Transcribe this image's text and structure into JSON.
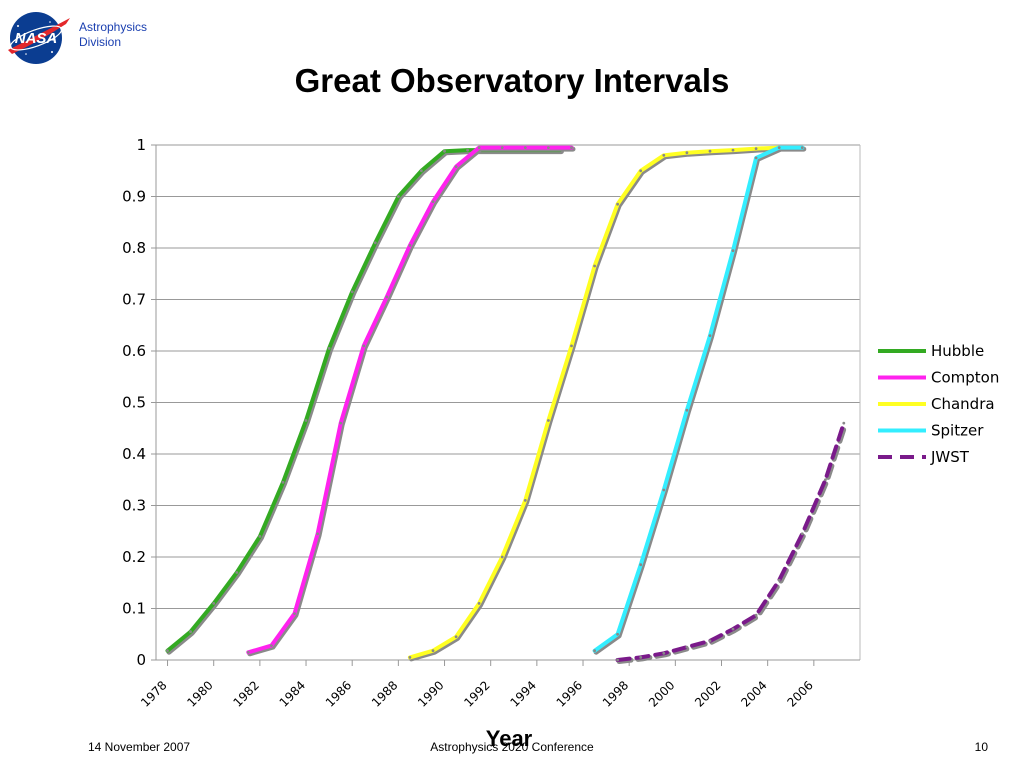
{
  "header": {
    "logo_text": "NASA",
    "division_line1": "Astrophysics",
    "division_line2": "Division"
  },
  "footer": {
    "date": "14 November 2007",
    "conference": "Astrophysics 2020 Conference",
    "page_number": "10"
  },
  "chart_data": {
    "type": "line",
    "title": "Great Observatory Intervals",
    "xlabel": "Year",
    "ylabel": "",
    "xlim": [
      1977.5,
      2008
    ],
    "ylim": [
      0,
      1
    ],
    "x_ticks": [
      "1978",
      "1980",
      "1982",
      "1984",
      "1986",
      "1988",
      "1990",
      "1992",
      "1994",
      "1996",
      "1998",
      "2000",
      "2002",
      "2004",
      "2006"
    ],
    "y_ticks": [
      "0",
      "0.1",
      "0.2",
      "0.3",
      "0.4",
      "0.5",
      "0.6",
      "0.7",
      "0.8",
      "0.9",
      "1"
    ],
    "grid": "horizontal",
    "legend_position": "right",
    "series": [
      {
        "name": "Hubble",
        "color": "#33aa22",
        "dash": false,
        "points": [
          [
            1978,
            0.018
          ],
          [
            1979,
            0.055
          ],
          [
            1980,
            0.11
          ],
          [
            1981,
            0.17
          ],
          [
            1982,
            0.24
          ],
          [
            1983,
            0.345
          ],
          [
            1984,
            0.465
          ],
          [
            1985,
            0.605
          ],
          [
            1986,
            0.715
          ],
          [
            1987,
            0.81
          ],
          [
            1988,
            0.9
          ],
          [
            1989,
            0.95
          ],
          [
            1990,
            0.988
          ],
          [
            1991,
            0.99
          ],
          [
            1992,
            0.99
          ],
          [
            1993,
            0.99
          ],
          [
            1994,
            0.99
          ],
          [
            1995,
            0.99
          ]
        ]
      },
      {
        "name": "Compton",
        "color": "#ff22ee",
        "dash": false,
        "points": [
          [
            1981.5,
            0.015
          ],
          [
            1982.5,
            0.028
          ],
          [
            1983.5,
            0.09
          ],
          [
            1984.5,
            0.245
          ],
          [
            1985.5,
            0.46
          ],
          [
            1986.5,
            0.61
          ],
          [
            1987.5,
            0.705
          ],
          [
            1988.5,
            0.805
          ],
          [
            1989.5,
            0.89
          ],
          [
            1990.5,
            0.958
          ],
          [
            1991.5,
            0.995
          ],
          [
            1992.5,
            0.995
          ],
          [
            1993.5,
            0.995
          ],
          [
            1994.5,
            0.995
          ],
          [
            1995.5,
            0.995
          ]
        ]
      },
      {
        "name": "Chandra",
        "color": "#ffff22",
        "dash": false,
        "points": [
          [
            1988.5,
            0.005
          ],
          [
            1989.5,
            0.018
          ],
          [
            1990.5,
            0.045
          ],
          [
            1991.5,
            0.11
          ],
          [
            1992.5,
            0.2
          ],
          [
            1993.5,
            0.31
          ],
          [
            1994.5,
            0.465
          ],
          [
            1995.5,
            0.61
          ],
          [
            1996.5,
            0.765
          ],
          [
            1997.5,
            0.885
          ],
          [
            1998.5,
            0.95
          ],
          [
            1999.5,
            0.98
          ],
          [
            2000.5,
            0.985
          ],
          [
            2001.5,
            0.988
          ],
          [
            2002.5,
            0.99
          ],
          [
            2003.5,
            0.993
          ],
          [
            2004.5,
            0.995
          ]
        ]
      },
      {
        "name": "Spitzer",
        "color": "#33eeff",
        "dash": false,
        "points": [
          [
            1996.5,
            0.018
          ],
          [
            1997.5,
            0.05
          ],
          [
            1998.5,
            0.185
          ],
          [
            1999.5,
            0.33
          ],
          [
            2000.5,
            0.485
          ],
          [
            2001.5,
            0.63
          ],
          [
            2002.5,
            0.795
          ],
          [
            2003.5,
            0.975
          ],
          [
            2004.5,
            0.995
          ],
          [
            2005.5,
            0.995
          ]
        ]
      },
      {
        "name": "JWST",
        "color": "#7a1a8a",
        "dash": true,
        "points": [
          [
            1997.5,
            0.0
          ],
          [
            1998.5,
            0.005
          ],
          [
            1999.5,
            0.013
          ],
          [
            2000.5,
            0.025
          ],
          [
            2001.5,
            0.037
          ],
          [
            2002.5,
            0.06
          ],
          [
            2003.5,
            0.087
          ],
          [
            2004.5,
            0.155
          ],
          [
            2005.5,
            0.245
          ],
          [
            2006.5,
            0.35
          ],
          [
            2007.3,
            0.46
          ]
        ]
      }
    ]
  }
}
